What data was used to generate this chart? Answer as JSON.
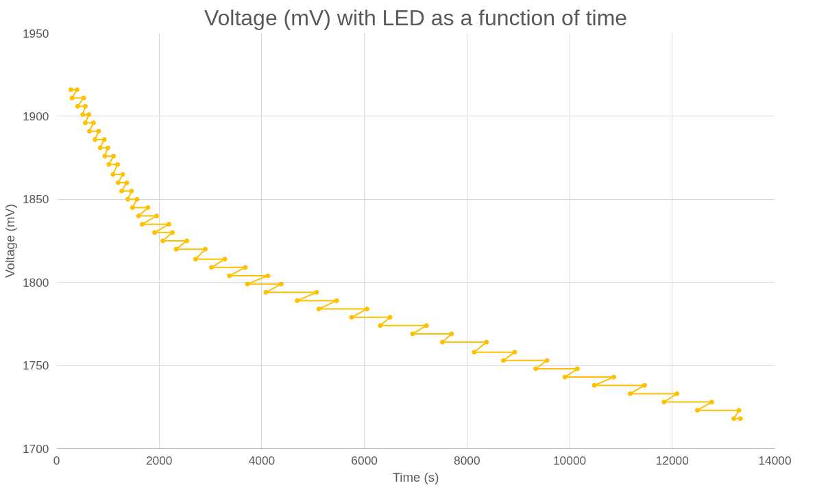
{
  "chart_data": {
    "type": "line",
    "title": "Voltage (mV) with LED as a function of time",
    "xlabel": "Time (s)",
    "ylabel": "Voltage (mV)",
    "xlim": [
      0,
      14000
    ],
    "xticks": [
      0,
      2000,
      4000,
      6000,
      8000,
      10000,
      12000,
      14000
    ],
    "ylim": [
      1700,
      1950
    ],
    "yticks": [
      1700,
      1750,
      1800,
      1850,
      1900,
      1950
    ],
    "grid": true,
    "marker": "circle",
    "line_style": "solid",
    "series": [
      {
        "color": "#ffc000",
        "x": [
          280,
          400,
          300,
          530,
          410,
          560,
          510,
          630,
          560,
          720,
          640,
          820,
          750,
          930,
          850,
          1000,
          940,
          1110,
          1020,
          1190,
          1100,
          1290,
          1200,
          1370,
          1270,
          1460,
          1390,
          1570,
          1480,
          1780,
          1600,
          1950,
          1670,
          2190,
          1910,
          2260,
          2070,
          2540,
          2330,
          2900,
          2710,
          3280,
          3020,
          3680,
          3370,
          4120,
          3720,
          4380,
          4080,
          5070,
          4690,
          5460,
          5110,
          6050,
          5750,
          6500,
          6310,
          7210,
          6940,
          7700,
          7520,
          8380,
          8140,
          8930,
          8710,
          9560,
          9340,
          10150,
          9910,
          10860,
          10480,
          11460,
          11180,
          12090,
          11840,
          12770,
          12490,
          13300,
          13200,
          13330
        ],
        "values": [
          1916,
          1916,
          1911,
          1911,
          1906,
          1906,
          1901,
          1901,
          1896,
          1896,
          1891,
          1891,
          1886,
          1886,
          1881,
          1881,
          1876,
          1876,
          1871,
          1871,
          1865,
          1865,
          1860,
          1860,
          1855,
          1855,
          1850,
          1850,
          1845,
          1845,
          1840,
          1840,
          1835,
          1835,
          1830,
          1830,
          1825,
          1825,
          1820,
          1820,
          1814,
          1814,
          1809,
          1809,
          1804,
          1804,
          1799,
          1799,
          1794,
          1794,
          1789,
          1789,
          1784,
          1784,
          1779,
          1779,
          1774,
          1774,
          1769,
          1769,
          1764,
          1764,
          1758,
          1758,
          1753,
          1753,
          1748,
          1748,
          1743,
          1743,
          1738,
          1738,
          1733,
          1733,
          1728,
          1728,
          1723,
          1723,
          1718,
          1718
        ]
      }
    ]
  }
}
